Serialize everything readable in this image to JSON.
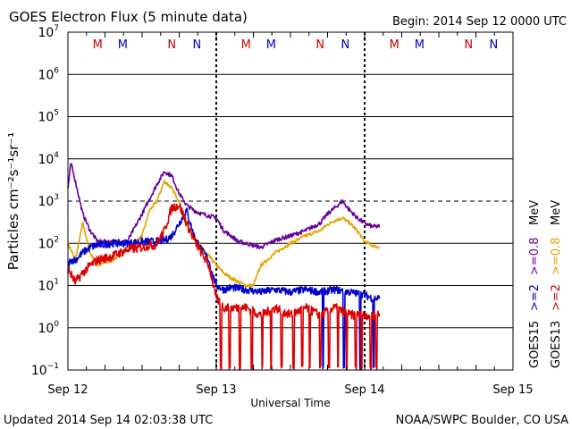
{
  "chart_data": {
    "type": "line",
    "title": "GOES Electron Flux (5 minute data)",
    "begin_label": "Begin: 2014 Sep 12 0000 UTC",
    "ylabel": "Particles cm⁻²s⁻¹sr⁻¹",
    "xlabel": "Universal Time",
    "yscale": "log",
    "ylim": [
      0.1,
      10000000
    ],
    "xlim": [
      0,
      3
    ],
    "x_unit": "days since 2014 Sep 12 00:00 UTC",
    "y_ticks": [
      {
        "value": 0.1,
        "base": "10",
        "exp": "−1"
      },
      {
        "value": 1,
        "base": "10",
        "exp": "0"
      },
      {
        "value": 10,
        "base": "10",
        "exp": "1"
      },
      {
        "value": 100,
        "base": "10",
        "exp": "2"
      },
      {
        "value": 1000,
        "base": "10",
        "exp": "3"
      },
      {
        "value": 10000,
        "base": "10",
        "exp": "4"
      },
      {
        "value": 100000,
        "base": "10",
        "exp": "5"
      },
      {
        "value": 1000000,
        "base": "10",
        "exp": "6"
      },
      {
        "value": 10000000,
        "base": "10",
        "exp": "7"
      }
    ],
    "x_ticks": [
      {
        "value": 0,
        "label": "Sep 12"
      },
      {
        "value": 1,
        "label": "Sep 13"
      },
      {
        "value": 2,
        "label": "Sep 14"
      },
      {
        "value": 3,
        "label": "Sep 15"
      }
    ],
    "threshold_line": 1000,
    "day_boundaries": [
      1,
      2
    ],
    "markers": [
      {
        "x": 0.2,
        "label": "M",
        "color": "#cc0000"
      },
      {
        "x": 0.37,
        "label": "M",
        "color": "#0000cc"
      },
      {
        "x": 0.7,
        "label": "N",
        "color": "#cc0000"
      },
      {
        "x": 0.87,
        "label": "N",
        "color": "#0000cc"
      },
      {
        "x": 1.2,
        "label": "M",
        "color": "#cc0000"
      },
      {
        "x": 1.37,
        "label": "M",
        "color": "#0000cc"
      },
      {
        "x": 1.7,
        "label": "N",
        "color": "#cc0000"
      },
      {
        "x": 1.87,
        "label": "N",
        "color": "#0000cc"
      },
      {
        "x": 2.2,
        "label": "M",
        "color": "#cc0000"
      },
      {
        "x": 2.37,
        "label": "M",
        "color": "#0000cc"
      },
      {
        "x": 2.7,
        "label": "N",
        "color": "#cc0000"
      },
      {
        "x": 2.87,
        "label": "N",
        "color": "#0000cc"
      }
    ],
    "legend": [
      {
        "label": "GOES15",
        "color": "#000000"
      },
      {
        "label": ">=2",
        "color": "#0000cc"
      },
      {
        "label": ">=0.8",
        "color": "#660099"
      },
      {
        "label": "GOES13",
        "color": "#000000"
      },
      {
        "label": ">=2",
        "color": "#cc0000"
      },
      {
        "label": ">=0.8",
        "color": "#e6a000"
      }
    ],
    "energy_unit": "MeV",
    "series": [
      {
        "name": "GOES15 >=2 MeV",
        "color": "#0000cc",
        "x": [
          0,
          0.02,
          0.05,
          0.1,
          0.15,
          0.2,
          0.3,
          0.4,
          0.5,
          0.6,
          0.66,
          0.7,
          0.75,
          0.8,
          0.85,
          0.9,
          0.95,
          0.97,
          1.0,
          1.05,
          1.1,
          1.2,
          1.3,
          1.4,
          1.5,
          1.6,
          1.7,
          1.8,
          1.9,
          2.0,
          2.05,
          2.1
        ],
        "y": [
          30,
          40,
          40,
          60,
          80,
          90,
          100,
          100,
          110,
          110,
          120,
          150,
          300,
          600,
          150,
          70,
          40,
          20,
          10,
          8,
          9,
          8,
          7,
          8,
          7,
          8,
          7,
          8,
          7,
          6,
          5,
          5
        ]
      },
      {
        "name": "GOES15 >=0.8 MeV",
        "color": "#660099",
        "x": [
          0,
          0.02,
          0.05,
          0.1,
          0.15,
          0.2,
          0.3,
          0.4,
          0.5,
          0.6,
          0.65,
          0.7,
          0.75,
          0.8,
          0.85,
          0.9,
          0.95,
          1.0,
          1.05,
          1.1,
          1.15,
          1.2,
          1.3,
          1.4,
          1.5,
          1.6,
          1.7,
          1.75,
          1.8,
          1.85,
          1.9,
          1.95,
          2.0,
          2.05,
          2.1
        ],
        "y": [
          2000,
          8000,
          3000,
          500,
          200,
          110,
          110,
          110,
          500,
          2500,
          5000,
          4000,
          1500,
          800,
          600,
          500,
          450,
          400,
          200,
          150,
          110,
          100,
          80,
          120,
          150,
          200,
          300,
          500,
          700,
          1000,
          600,
          400,
          300,
          250,
          250
        ]
      },
      {
        "name": "GOES13 >=2 MeV",
        "color": "#dd0000",
        "x": [
          0,
          0.05,
          0.1,
          0.15,
          0.2,
          0.3,
          0.4,
          0.5,
          0.55,
          0.58,
          0.6,
          0.65,
          0.7,
          0.75,
          0.8,
          0.85,
          0.9,
          0.95,
          0.97,
          1.0,
          1.05,
          1.1,
          1.2,
          1.3,
          1.4,
          1.5,
          1.6,
          1.7,
          1.8,
          1.9,
          2.0,
          2.05,
          2.1
        ],
        "y": [
          25,
          12,
          20,
          30,
          40,
          50,
          70,
          80,
          90,
          90,
          100,
          200,
          700,
          800,
          300,
          120,
          60,
          30,
          15,
          5,
          3,
          3,
          3,
          2,
          3,
          2,
          3,
          2,
          3,
          2,
          2,
          2,
          2
        ]
      },
      {
        "name": "GOES13 >=0.8 MeV",
        "color": "#e6a000",
        "x": [
          0,
          0.05,
          0.1,
          0.15,
          0.2,
          0.3,
          0.4,
          0.5,
          0.55,
          0.6,
          0.65,
          0.7,
          0.75,
          0.8,
          0.85,
          0.9,
          0.95,
          1.0,
          1.05,
          1.1,
          1.2,
          1.25,
          1.3,
          1.4,
          1.5,
          1.6,
          1.7,
          1.75,
          1.8,
          1.85,
          1.9,
          1.95,
          2.0,
          2.05,
          2.1
        ],
        "y": [
          100,
          40,
          300,
          60,
          30,
          40,
          70,
          150,
          600,
          1000,
          3000,
          2000,
          1000,
          300,
          150,
          80,
          50,
          30,
          20,
          15,
          10,
          10,
          30,
          60,
          100,
          150,
          200,
          280,
          350,
          400,
          300,
          200,
          110,
          90,
          80
        ]
      }
    ],
    "noise_drops": {
      "goes13_2mev": [
        1.03,
        1.09,
        1.16,
        1.24,
        1.31,
        1.37,
        1.44,
        1.52,
        1.58,
        1.63,
        1.7,
        1.76,
        1.82,
        1.88,
        1.94,
        1.98,
        2.04,
        2.08
      ],
      "goes15_2mev": [
        1.72,
        1.86,
        1.97,
        2.06
      ]
    }
  },
  "footer": {
    "updated": "Updated 2014 Sep 14 02:03:38 UTC",
    "credit": "NOAA/SWPC Boulder, CO USA"
  }
}
